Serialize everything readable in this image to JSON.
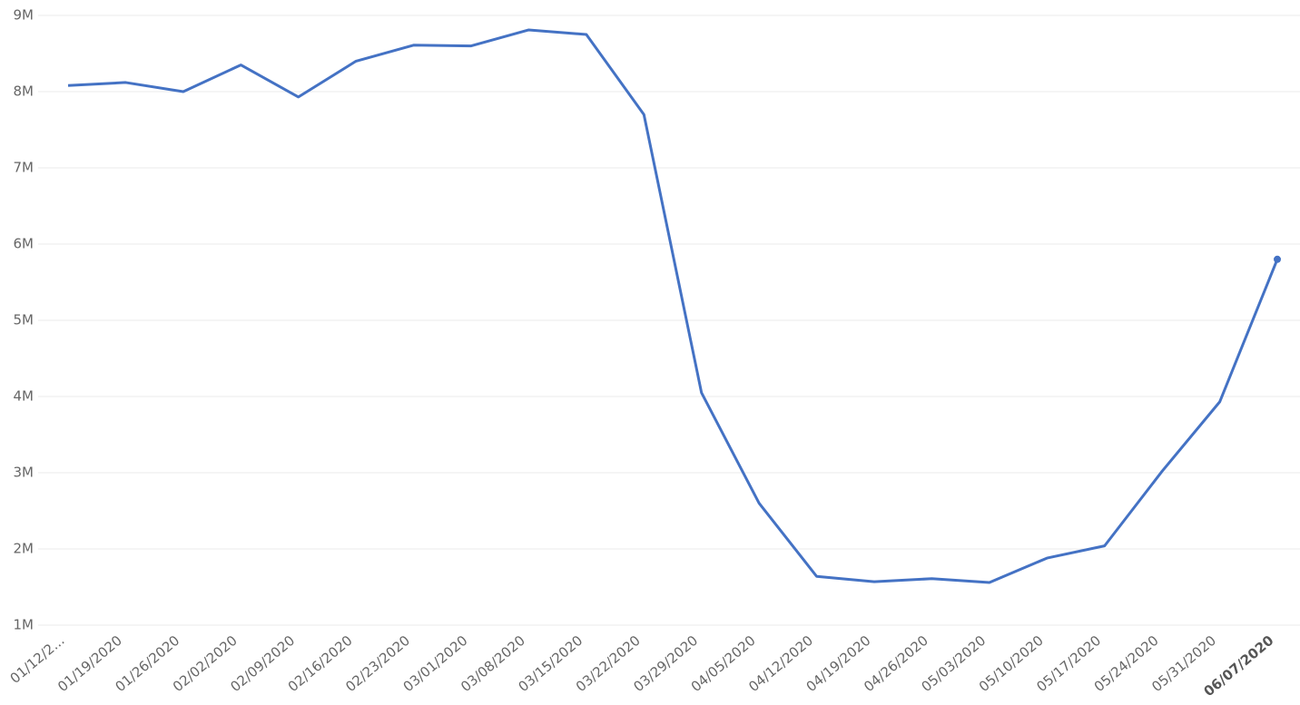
{
  "chart_data": {
    "type": "line",
    "categories": [
      "01/12/2...",
      "01/19/2020",
      "01/26/2020",
      "02/02/2020",
      "02/09/2020",
      "02/16/2020",
      "02/23/2020",
      "03/01/2020",
      "03/08/2020",
      "03/15/2020",
      "03/22/2020",
      "03/29/2020",
      "04/05/2020",
      "04/12/2020",
      "04/19/2020",
      "04/26/2020",
      "05/03/2020",
      "05/10/2020",
      "05/17/2020",
      "05/24/2020",
      "05/31/2020",
      "06/07/2020"
    ],
    "series": [
      {
        "color": "#4472c4",
        "values": [
          8080000,
          8120000,
          8000000,
          8350000,
          7930000,
          8400000,
          8610000,
          8600000,
          8810000,
          8750000,
          7700000,
          4050000,
          2600000,
          1640000,
          1570000,
          1610000,
          1560000,
          1880000,
          2040000,
          3020000,
          3930000,
          5800000
        ]
      }
    ],
    "ylim": [
      1000000,
      9000000
    ],
    "yticks": [
      {
        "value": 1000000,
        "label": "1M"
      },
      {
        "value": 2000000,
        "label": "2M"
      },
      {
        "value": 3000000,
        "label": "3M"
      },
      {
        "value": 4000000,
        "label": "4M"
      },
      {
        "value": 5000000,
        "label": "5M"
      },
      {
        "value": 6000000,
        "label": "6M"
      },
      {
        "value": 7000000,
        "label": "7M"
      },
      {
        "value": 8000000,
        "label": "8M"
      },
      {
        "value": 9000000,
        "label": "9M"
      }
    ],
    "grid": true
  }
}
